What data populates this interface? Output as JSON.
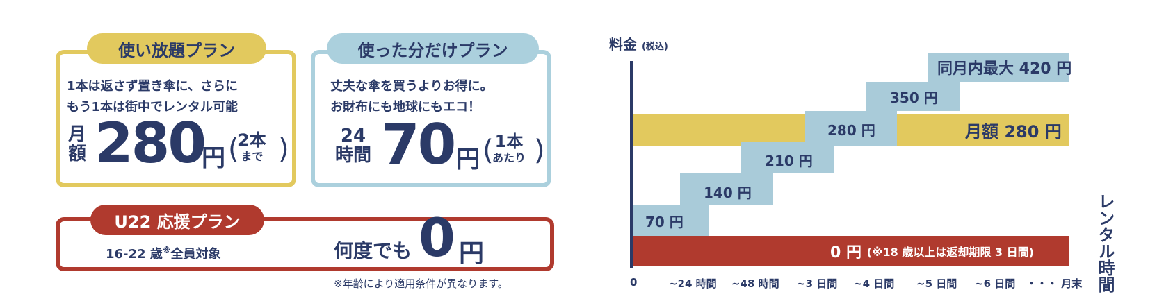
{
  "plans": [
    {
      "title": "使い放題プラン",
      "lines": [
        "1本は返さず置き傘に、さらに",
        "もう1本は街中でレンタル可能"
      ],
      "period": [
        "月",
        "額"
      ],
      "price": "280",
      "unit": "円",
      "note": [
        "2本",
        "まで"
      ]
    },
    {
      "title": "使った分だけプラン",
      "lines": [
        "丈夫な傘を買うよりお得に。",
        "お財布にも地球にもエコ！"
      ],
      "period": [
        "24",
        "時間"
      ],
      "price": "70",
      "unit": "円",
      "note": [
        "1本",
        "あたり"
      ]
    }
  ],
  "u22": {
    "title": "U22 応援プラン",
    "target_pre": "16-22 歳",
    "mark": "※",
    "target_post": "全員対象",
    "offer": "何度でも",
    "price": "0",
    "unit": "円"
  },
  "footnote": "※年齢により適用条件が異なります。",
  "diagram": {
    "y_label": "料金",
    "y_label_sub": "(税込)",
    "x_label": "レンタル時間",
    "x_ticks": [
      "0",
      "~24 時間",
      "~48 時間",
      "~3 日間",
      "~4 日間",
      "~5 日間",
      "~6 日間",
      "・・・ 月末"
    ],
    "steps": [
      "70 円",
      "140 円",
      "210 円",
      "280 円",
      "350 円",
      "同月内最大 420 円"
    ],
    "monthly": "月額 280 円",
    "free": "0 円",
    "free_note": "(※18 歳以上は返却期限 3 日間)"
  }
}
